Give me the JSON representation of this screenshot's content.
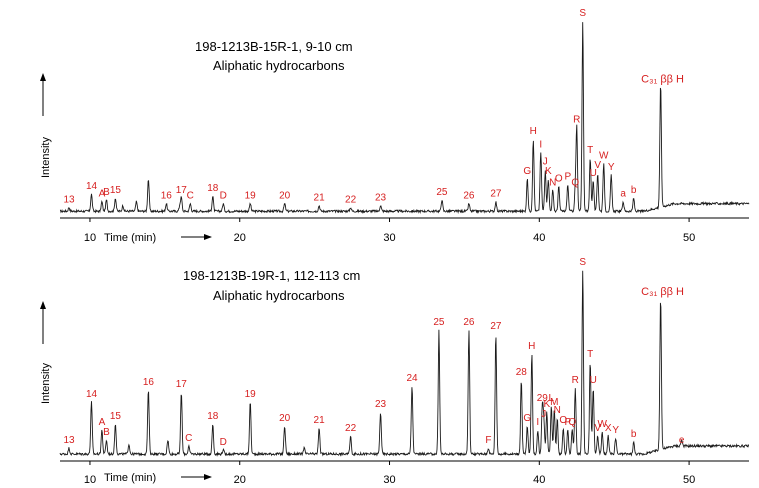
{
  "colors": {
    "trace": "#1a1a1a",
    "peak_label": "#d62020",
    "axis": "#000000"
  },
  "chart_data": [
    {
      "type": "line",
      "title": "198-1213B-15R-1, 9-10 cm",
      "subtitle": "Aliphatic hydrocarbons",
      "xlabel": "Time (min)",
      "ylabel": "Intensity",
      "xlim": [
        8,
        54
      ],
      "x_ticks": [
        10,
        20,
        30,
        40,
        50
      ],
      "baseline": 0.02,
      "peaks": [
        {
          "t": 8.6,
          "h": 0.02,
          "label": "13"
        },
        {
          "t": 10.1,
          "h": 0.09,
          "label": "14"
        },
        {
          "t": 10.8,
          "h": 0.05,
          "label": "A"
        },
        {
          "t": 11.1,
          "h": 0.06,
          "label": "B"
        },
        {
          "t": 11.7,
          "h": 0.07,
          "label": "15"
        },
        {
          "t": 12.2,
          "h": 0.03,
          "label": ""
        },
        {
          "t": 13.1,
          "h": 0.05,
          "label": ""
        },
        {
          "t": 13.9,
          "h": 0.17,
          "label": ""
        },
        {
          "t": 15.1,
          "h": 0.04,
          "label": "16"
        },
        {
          "t": 16.0,
          "h": 0.03,
          "label": ""
        },
        {
          "t": 16.1,
          "h": 0.07,
          "label": "17"
        },
        {
          "t": 16.7,
          "h": 0.04,
          "label": "C"
        },
        {
          "t": 18.2,
          "h": 0.08,
          "label": "18"
        },
        {
          "t": 18.9,
          "h": 0.04,
          "label": "D"
        },
        {
          "t": 20.7,
          "h": 0.04,
          "label": "19"
        },
        {
          "t": 23.0,
          "h": 0.04,
          "label": "20"
        },
        {
          "t": 25.3,
          "h": 0.03,
          "label": "21"
        },
        {
          "t": 27.4,
          "h": 0.02,
          "label": "22"
        },
        {
          "t": 29.4,
          "h": 0.03,
          "label": "23"
        },
        {
          "t": 33.5,
          "h": 0.06,
          "label": "25"
        },
        {
          "t": 35.3,
          "h": 0.04,
          "label": "26"
        },
        {
          "t": 37.1,
          "h": 0.05,
          "label": "27"
        },
        {
          "t": 39.2,
          "h": 0.17,
          "label": "G"
        },
        {
          "t": 39.6,
          "h": 0.38,
          "label": "H"
        },
        {
          "t": 40.1,
          "h": 0.31,
          "label": "I"
        },
        {
          "t": 40.4,
          "h": 0.22,
          "label": "J"
        },
        {
          "t": 40.6,
          "h": 0.17,
          "label": "K"
        },
        {
          "t": 40.9,
          "h": 0.11,
          "label": "N"
        },
        {
          "t": 41.3,
          "h": 0.13,
          "label": "O"
        },
        {
          "t": 41.9,
          "h": 0.14,
          "label": "P"
        },
        {
          "t": 42.4,
          "h": 0.11,
          "label": "Q"
        },
        {
          "t": 42.5,
          "h": 0.44,
          "label": "R"
        },
        {
          "t": 42.9,
          "h": 1.0,
          "label": "S"
        },
        {
          "t": 43.4,
          "h": 0.28,
          "label": "T"
        },
        {
          "t": 43.6,
          "h": 0.16,
          "label": "U"
        },
        {
          "t": 43.9,
          "h": 0.2,
          "label": "V"
        },
        {
          "t": 44.3,
          "h": 0.25,
          "label": "W"
        },
        {
          "t": 44.8,
          "h": 0.19,
          "label": "Y"
        },
        {
          "t": 45.6,
          "h": 0.05,
          "label": "a"
        },
        {
          "t": 46.3,
          "h": 0.07,
          "label": "b"
        },
        {
          "t": 48.1,
          "h": 0.65,
          "label": "C₃₁ ββ H"
        }
      ]
    },
    {
      "type": "line",
      "title": "198-1213B-19R-1, 112-113 cm",
      "subtitle": "Aliphatic hydrocarbons",
      "xlabel": "Time (min)",
      "ylabel": "Intensity",
      "xlim": [
        8,
        54
      ],
      "x_ticks": [
        10,
        20,
        30,
        40,
        50
      ],
      "baseline": 0.02,
      "peaks": [
        {
          "t": 8.6,
          "h": 0.03,
          "label": "13"
        },
        {
          "t": 10.1,
          "h": 0.26,
          "label": "14"
        },
        {
          "t": 10.8,
          "h": 0.12,
          "label": "A"
        },
        {
          "t": 11.1,
          "h": 0.07,
          "label": "B"
        },
        {
          "t": 11.7,
          "h": 0.15,
          "label": "15"
        },
        {
          "t": 12.6,
          "h": 0.05,
          "label": ""
        },
        {
          "t": 13.9,
          "h": 0.32,
          "label": "16"
        },
        {
          "t": 15.2,
          "h": 0.07,
          "label": ""
        },
        {
          "t": 16.1,
          "h": 0.31,
          "label": "17"
        },
        {
          "t": 16.6,
          "h": 0.04,
          "label": "C"
        },
        {
          "t": 18.2,
          "h": 0.15,
          "label": "18"
        },
        {
          "t": 18.9,
          "h": 0.02,
          "label": "D"
        },
        {
          "t": 20.7,
          "h": 0.26,
          "label": "19"
        },
        {
          "t": 23.0,
          "h": 0.14,
          "label": "20"
        },
        {
          "t": 24.3,
          "h": 0.03,
          "label": ""
        },
        {
          "t": 25.3,
          "h": 0.13,
          "label": "21"
        },
        {
          "t": 27.4,
          "h": 0.09,
          "label": "22"
        },
        {
          "t": 29.4,
          "h": 0.21,
          "label": "23"
        },
        {
          "t": 31.5,
          "h": 0.34,
          "label": "24"
        },
        {
          "t": 33.3,
          "h": 0.62,
          "label": "25"
        },
        {
          "t": 35.3,
          "h": 0.62,
          "label": "26"
        },
        {
          "t": 36.6,
          "h": 0.03,
          "label": "F"
        },
        {
          "t": 37.1,
          "h": 0.6,
          "label": "27"
        },
        {
          "t": 38.8,
          "h": 0.37,
          "label": "28"
        },
        {
          "t": 39.2,
          "h": 0.14,
          "label": "G"
        },
        {
          "t": 39.5,
          "h": 0.5,
          "label": "H"
        },
        {
          "t": 39.9,
          "h": 0.12,
          "label": "I"
        },
        {
          "t": 40.2,
          "h": 0.24,
          "label": "29"
        },
        {
          "t": 40.3,
          "h": 0.16,
          "label": "J"
        },
        {
          "t": 40.5,
          "h": 0.21,
          "label": "K"
        },
        {
          "t": 40.8,
          "h": 0.24,
          "label": "L"
        },
        {
          "t": 41.0,
          "h": 0.22,
          "label": "M"
        },
        {
          "t": 41.2,
          "h": 0.18,
          "label": "N"
        },
        {
          "t": 41.6,
          "h": 0.13,
          "label": "O"
        },
        {
          "t": 41.9,
          "h": 0.12,
          "label": "P"
        },
        {
          "t": 42.2,
          "h": 0.12,
          "label": "Q"
        },
        {
          "t": 42.4,
          "h": 0.33,
          "label": "R"
        },
        {
          "t": 42.9,
          "h": 0.92,
          "label": "S"
        },
        {
          "t": 43.4,
          "h": 0.46,
          "label": "T"
        },
        {
          "t": 43.6,
          "h": 0.33,
          "label": "U"
        },
        {
          "t": 43.9,
          "h": 0.09,
          "label": "V"
        },
        {
          "t": 44.2,
          "h": 0.11,
          "label": "W"
        },
        {
          "t": 44.6,
          "h": 0.09,
          "label": "X"
        },
        {
          "t": 45.1,
          "h": 0.08,
          "label": "Y"
        },
        {
          "t": 46.3,
          "h": 0.06,
          "label": "b"
        },
        {
          "t": 48.1,
          "h": 0.77,
          "label": "C₃₁ ββ H"
        },
        {
          "t": 49.5,
          "h": 0.03,
          "label": "e"
        }
      ]
    }
  ]
}
